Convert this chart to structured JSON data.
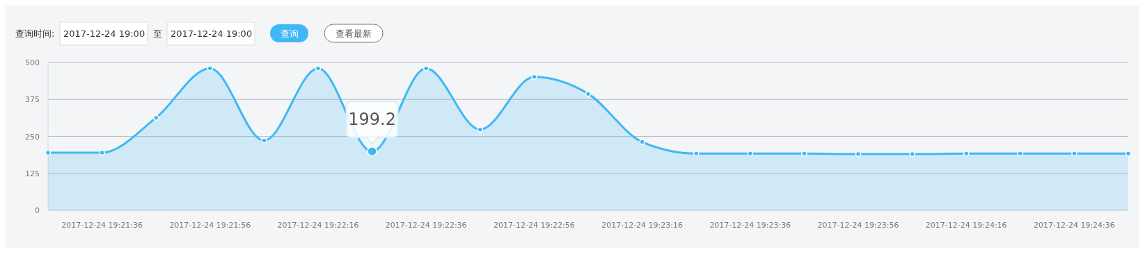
{
  "chart_data": {
    "type": "area",
    "categories": [
      null,
      "2017-12-24 19:21:36",
      null,
      "2017-12-24 19:21:56",
      null,
      "2017-12-24 19:22:16",
      null,
      "2017-12-24 19:22:36",
      null,
      "2017-12-24 19:22:56",
      null,
      "2017-12-24 19:23:16",
      null,
      "2017-12-24 19:23:36",
      null,
      "2017-12-24 19:23:56",
      null,
      "2017-12-24 19:24:16",
      null,
      "2017-12-24 19:24:36",
      null
    ],
    "series": [
      {
        "color": "#3fb8f5",
        "values": [
          195,
          195,
          313,
          480,
          236,
          480,
          199.2,
          480,
          273,
          451,
          394,
          231,
          192,
          192,
          192,
          190,
          190,
          192,
          192,
          192,
          192
        ],
        "value_labels": [
          null,
          null,
          null,
          null,
          null,
          null,
          "199.2",
          null,
          null,
          null,
          null,
          null,
          null,
          null,
          null,
          null,
          null,
          null,
          null,
          null,
          null
        ]
      }
    ],
    "ylim": [
      0,
      500
    ],
    "yticks": [
      0,
      125,
      250,
      375,
      500
    ],
    "grid": "y",
    "marker": "circle",
    "annotations": [
      "查询时间:",
      "2017-12-24 19:00",
      "至",
      "2017-12-24 19:00",
      "查询",
      "查看最新"
    ]
  }
}
